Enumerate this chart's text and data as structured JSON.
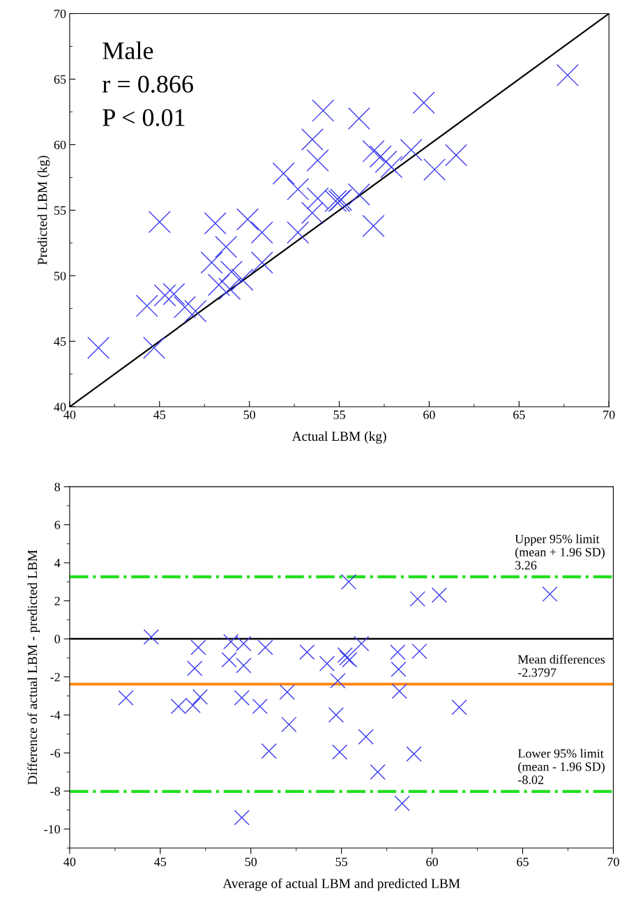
{
  "chart_data": [
    {
      "type": "scatter",
      "xlabel": "Actual LBM (kg)",
      "ylabel": "Predicted LBM (kg)",
      "annotations": [
        "Male",
        "r = 0.866",
        "P < 0.01"
      ],
      "xlim": [
        40,
        70
      ],
      "ylim": [
        40,
        70
      ],
      "xticks": [
        40,
        45,
        50,
        55,
        60,
        65,
        70
      ],
      "yticks": [
        40,
        45,
        50,
        55,
        60,
        65,
        70
      ],
      "grid": false,
      "marker": "cross",
      "series": [
        {
          "color": "#3a3af0",
          "x": [
            45.0,
            41.6,
            44.7,
            44.3,
            45.3,
            45.8,
            46.4,
            47.0,
            48.1,
            47.9,
            48.7,
            48.3,
            49.0,
            48.9,
            49.6,
            49.9,
            50.7,
            50.7,
            51.9,
            52.7,
            52.7,
            53.5,
            53.8,
            53.8,
            53.5,
            54.1,
            54.8,
            55.0,
            55.1,
            56.1,
            56.1,
            56.9,
            56.9,
            57.3,
            57.6,
            57.9,
            59.0,
            59.7,
            60.3,
            61.5,
            67.7
          ],
          "values": [
            54.1,
            44.5,
            44.5,
            47.7,
            48.5,
            48.6,
            47.6,
            47.3,
            54.0,
            51.0,
            52.2,
            49.3,
            50.3,
            49.0,
            49.7,
            54.3,
            53.3,
            51.0,
            57.8,
            56.6,
            53.3,
            60.4,
            58.8,
            55.9,
            54.8,
            62.6,
            55.7,
            55.7,
            55.8,
            62.0,
            56.2,
            53.8,
            59.5,
            59.1,
            58.7,
            58.3,
            59.6,
            63.2,
            58.1,
            59.2,
            65.3
          ]
        },
        {
          "type": "line",
          "color": "#000000",
          "marker": "none",
          "x": [
            40,
            70
          ],
          "values": [
            40,
            70
          ]
        }
      ]
    },
    {
      "type": "scatter",
      "xlabel": "Average of actual LBM and predicted LBM",
      "ylabel": "Difference of actual LBM - predicted LBM",
      "xlim": [
        40,
        70
      ],
      "ylim": [
        -11,
        8
      ],
      "xticks": [
        40,
        45,
        50,
        55,
        60,
        65,
        70
      ],
      "yticks": [
        -10,
        -8,
        -6,
        -4,
        -2,
        0,
        2,
        4,
        6,
        8
      ],
      "grid": false,
      "marker": "cross",
      "series": [
        {
          "color": "#3a3af0",
          "x": [
            43.1,
            44.5,
            47.1,
            46.9,
            46.0,
            46.8,
            47.2,
            48.9,
            49.6,
            48.8,
            49.6,
            49.5,
            50.8,
            50.5,
            52.0,
            52.1,
            51.0,
            49.5,
            53.1,
            54.2,
            54.8,
            54.7,
            54.9,
            55.4,
            59.2,
            60.4,
            66.5,
            56.1,
            55.2,
            55.3,
            55.45,
            58.1,
            59.3,
            58.15,
            58.2,
            61.5,
            56.35,
            59.0,
            57.0,
            58.35
          ],
          "values": [
            -3.1,
            0.1,
            -0.45,
            -1.55,
            -3.55,
            -3.5,
            -3.05,
            -0.15,
            -0.25,
            -1.1,
            -1.4,
            -3.1,
            -0.45,
            -3.55,
            -2.8,
            -4.5,
            -5.9,
            -9.4,
            -0.7,
            -1.3,
            -2.2,
            -4.0,
            -5.95,
            3.0,
            2.1,
            2.3,
            2.35,
            -0.25,
            -0.85,
            -1.0,
            -1.1,
            -0.7,
            -0.65,
            -1.6,
            -2.75,
            -3.6,
            -5.15,
            -6.05,
            -7.0,
            -8.65
          ]
        }
      ],
      "ref_lines": [
        {
          "axis": "y",
          "value": 0,
          "color": "#000000",
          "line_style": "solid"
        },
        {
          "axis": "y",
          "value": 3.26,
          "color": "#22e01e",
          "line_style": "dashdot",
          "label": "Upper 95% limit\n(mean + 1.96 SD)\n3.26"
        },
        {
          "axis": "y",
          "value": -2.3797,
          "color": "#ff8c1a",
          "line_style": "solid",
          "label": "Mean differences\n-2.3797"
        },
        {
          "axis": "y",
          "value": -8.02,
          "color": "#22e01e",
          "line_style": "dashdot",
          "label": "Lower 95% limit\n(mean - 1.96 SD)\n-8.02"
        }
      ]
    }
  ]
}
